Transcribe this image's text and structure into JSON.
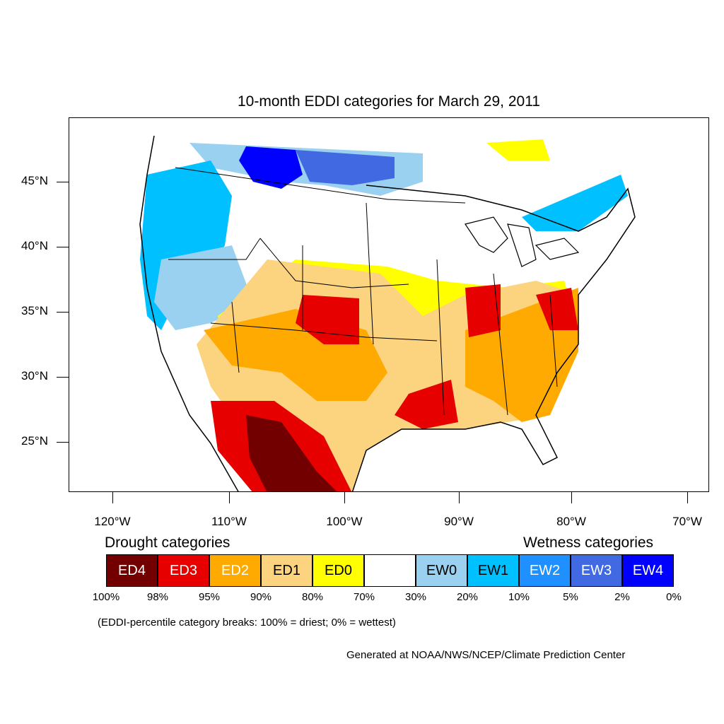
{
  "title": "10-month EDDI categories for March 29, 2011",
  "lat_labels": [
    "45°N",
    "40°N",
    "35°N",
    "30°N",
    "25°N"
  ],
  "lon_labels": [
    "120°W",
    "110°W",
    "100°W",
    "90°W",
    "80°W",
    "70°W"
  ],
  "legend": {
    "drought_heading": "Drought categories",
    "wetness_heading": "Wetness categories",
    "categories": [
      {
        "label": "ED4",
        "color": "#730000"
      },
      {
        "label": "ED3",
        "color": "#e60000"
      },
      {
        "label": "ED2",
        "color": "#ffaa00"
      },
      {
        "label": "ED1",
        "color": "#fcd37f"
      },
      {
        "label": "ED0",
        "color": "#ffff00"
      },
      {
        "label": "",
        "color": "#ffffff"
      },
      {
        "label": "EW0",
        "color": "#9bd1f0"
      },
      {
        "label": "EW1",
        "color": "#00c0ff"
      },
      {
        "label": "EW2",
        "color": "#1e90ff"
      },
      {
        "label": "EW3",
        "color": "#4169e1"
      },
      {
        "label": "EW4",
        "color": "#0000ff"
      }
    ],
    "percentiles": [
      "100%",
      "98%",
      "95%",
      "90%",
      "80%",
      "70%",
      "30%",
      "20%",
      "10%",
      "5%",
      "2%",
      "0%"
    ]
  },
  "note": "(EDDI-percentile category breaks: 100% = driest; 0% = wettest)",
  "credit": "Generated at NOAA/NWS/NCEP/Climate Prediction Center"
}
